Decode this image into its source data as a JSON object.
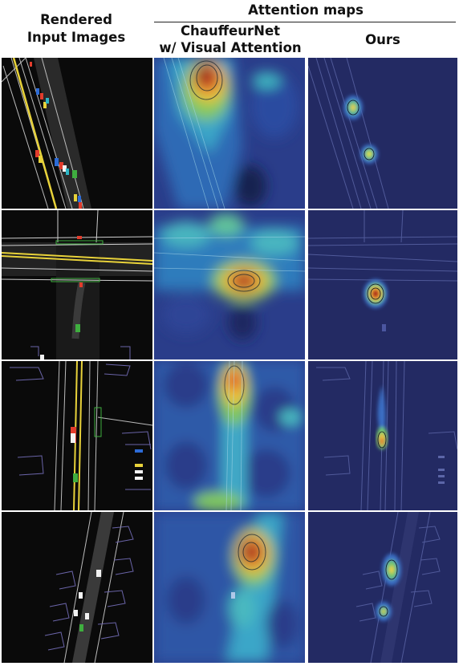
{
  "header": {
    "col1_line1": "Rendered",
    "col1_line2": "Input Images",
    "group_title": "Attention maps",
    "col2_line1": "ChauffeurNet",
    "col2_line2": "w/ Visual Attention",
    "col3": "Ours"
  },
  "colors": {
    "input_bg": "#0a0a0a",
    "heat_bg": "#1f2b6e",
    "ours_bg": "#232a63",
    "lane_yellow": "#e8d23a",
    "ego_green": "#3fae3f"
  }
}
